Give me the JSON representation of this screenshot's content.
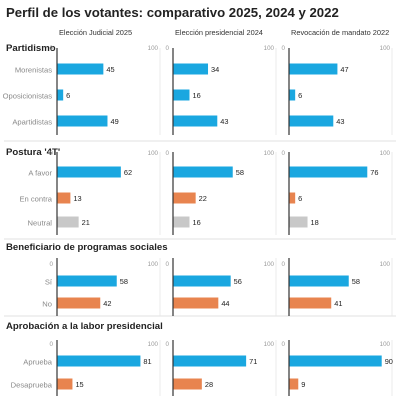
{
  "title": "Perfil de los votantes: comparativo 2025, 2024 y 2022",
  "colors": {
    "blue": "#1aa7e0",
    "orange": "#e8844f",
    "gray": "#c8c8c8",
    "axis": "#333333",
    "grid": "#e6e6e6",
    "section": "#d9d9d9"
  },
  "chart_data": {
    "type": "bar",
    "orientation": "horizontal",
    "xlim": [
      0,
      100
    ],
    "columns": [
      "Elección Judicial 2025",
      "Elección presidencial 2024",
      "Revocación de mandato 2022"
    ],
    "tick_labels": [
      "0",
      "100"
    ],
    "sections": [
      {
        "title": "Partidismo",
        "categories": [
          "Morenistas",
          "Oposicionistas",
          "Apartidistas"
        ],
        "bar_colors": [
          "blue",
          "blue",
          "blue"
        ],
        "values": [
          [
            45,
            6,
            49
          ],
          [
            34,
            16,
            43
          ],
          [
            47,
            6,
            43
          ]
        ]
      },
      {
        "title": "Postura '4T'",
        "categories": [
          "A favor",
          "En contra",
          "Neutral"
        ],
        "bar_colors": [
          "blue",
          "orange",
          "gray"
        ],
        "values": [
          [
            62,
            13,
            21
          ],
          [
            58,
            22,
            16
          ],
          [
            76,
            6,
            18
          ]
        ]
      },
      {
        "title": "Beneficiario de programas sociales",
        "categories": [
          "Sí",
          "No"
        ],
        "bar_colors": [
          "blue",
          "orange"
        ],
        "values": [
          [
            58,
            42
          ],
          [
            56,
            44
          ],
          [
            58,
            41
          ]
        ]
      },
      {
        "title": "Aprobación a la labor presidencial",
        "categories": [
          "Aprueba",
          "Desaprueba"
        ],
        "bar_colors": [
          "blue",
          "orange"
        ],
        "values": [
          [
            81,
            15
          ],
          [
            71,
            28
          ],
          [
            90,
            9
          ]
        ]
      }
    ]
  }
}
